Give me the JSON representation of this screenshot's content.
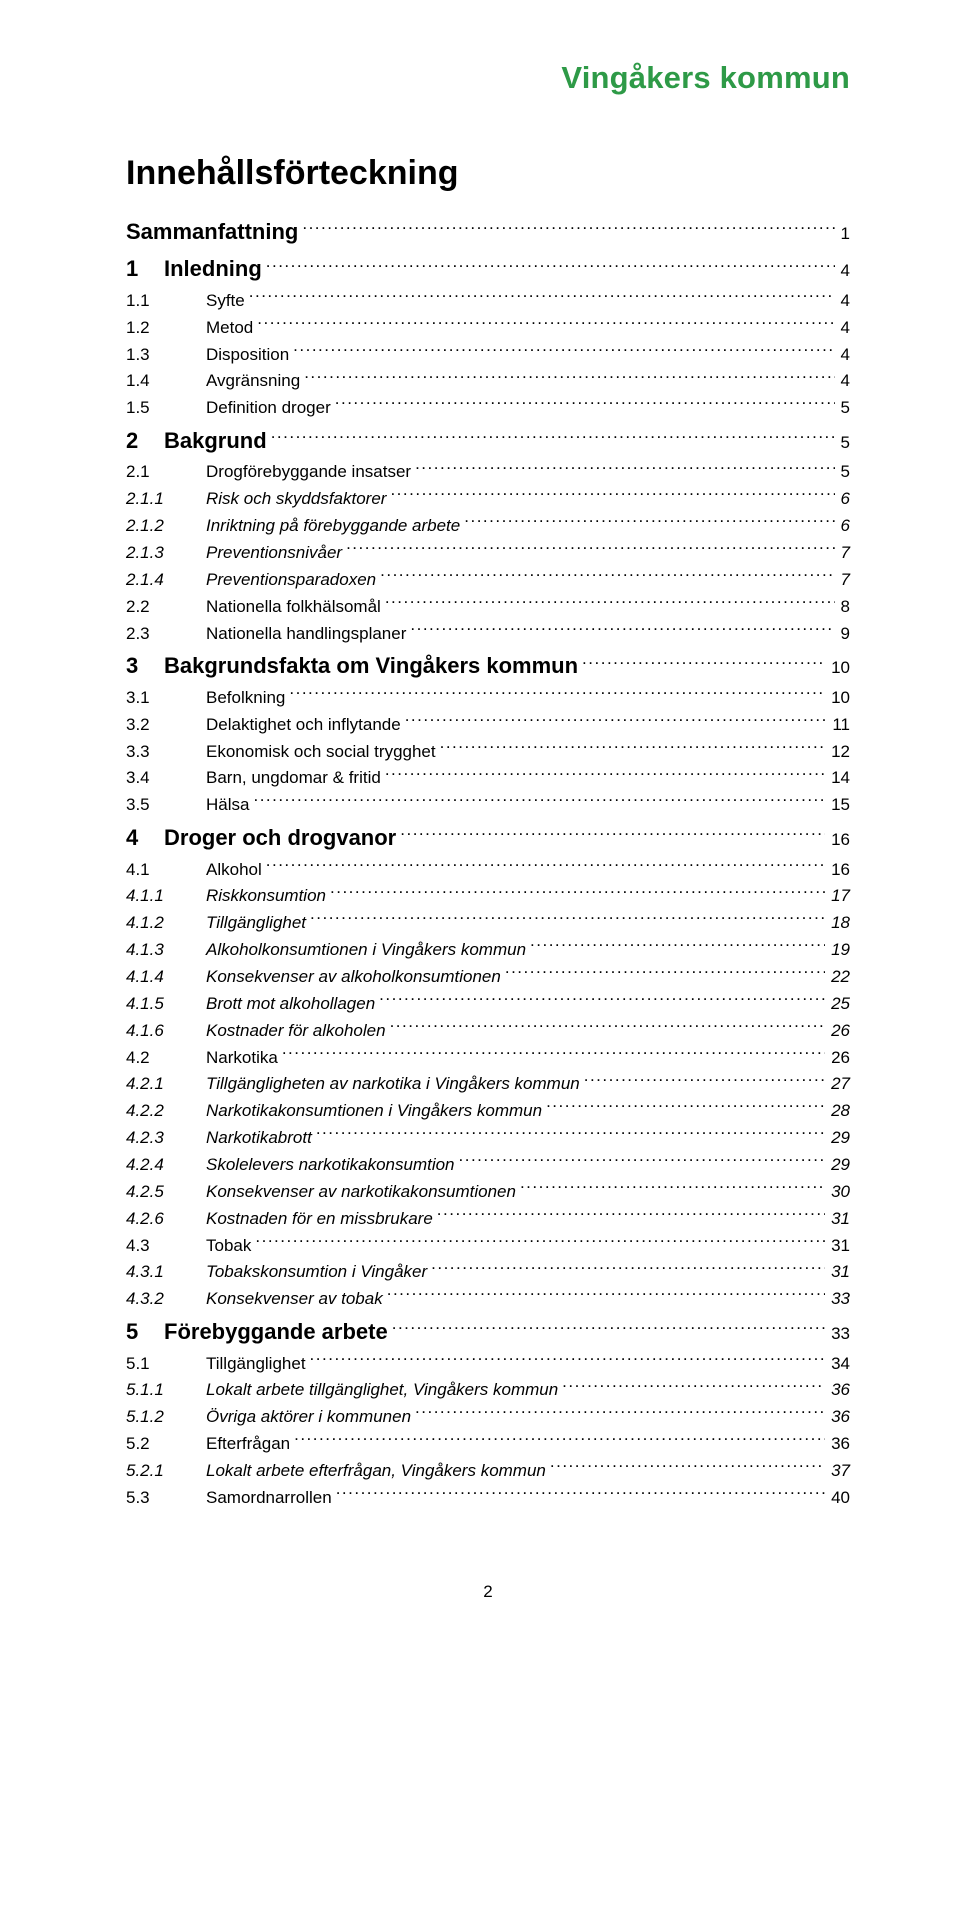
{
  "brand": "Vingåkers kommun",
  "title": "Innehållsförteckning",
  "page_number": "2",
  "colors": {
    "brand_green": "#2e9a47",
    "text": "#000000",
    "background": "#ffffff"
  },
  "typography": {
    "brand_fontsize": 31,
    "title_fontsize": 34,
    "lvl0_fontsize": 22,
    "body_fontsize": 17
  },
  "toc": [
    {
      "level": 0,
      "num": "",
      "label": "Sammanfattning",
      "page": "1",
      "nonum": true
    },
    {
      "level": 0,
      "num": "1",
      "label": "Inledning",
      "page": "4"
    },
    {
      "level": 1,
      "num": "1.1",
      "label": "Syfte",
      "page": "4"
    },
    {
      "level": 1,
      "num": "1.2",
      "label": "Metod",
      "page": "4"
    },
    {
      "level": 1,
      "num": "1.3",
      "label": "Disposition",
      "page": "4"
    },
    {
      "level": 1,
      "num": "1.4",
      "label": "Avgränsning",
      "page": "4"
    },
    {
      "level": 1,
      "num": "1.5",
      "label": "Definition droger",
      "page": "5"
    },
    {
      "level": 0,
      "num": "2",
      "label": "Bakgrund",
      "page": "5"
    },
    {
      "level": 1,
      "num": "2.1",
      "label": "Drogförebyggande insatser",
      "page": "5"
    },
    {
      "level": 2,
      "num": "2.1.1",
      "label": "Risk och skyddsfaktorer",
      "page": "6"
    },
    {
      "level": 2,
      "num": "2.1.2",
      "label": "Inriktning på förebyggande arbete",
      "page": "6"
    },
    {
      "level": 2,
      "num": "2.1.3",
      "label": "Preventionsnivåer",
      "page": "7"
    },
    {
      "level": 2,
      "num": "2.1.4",
      "label": "Preventionsparadoxen",
      "page": "7"
    },
    {
      "level": 1,
      "num": "2.2",
      "label": "Nationella folkhälsomål",
      "page": "8"
    },
    {
      "level": 1,
      "num": "2.3",
      "label": "Nationella handlingsplaner",
      "page": "9"
    },
    {
      "level": 0,
      "num": "3",
      "label": "Bakgrundsfakta om Vingåkers kommun",
      "page": "10"
    },
    {
      "level": 1,
      "num": "3.1",
      "label": "Befolkning",
      "page": "10"
    },
    {
      "level": 1,
      "num": "3.2",
      "label": "Delaktighet och inflytande",
      "page": "11"
    },
    {
      "level": 1,
      "num": "3.3",
      "label": "Ekonomisk och social trygghet",
      "page": "12"
    },
    {
      "level": 1,
      "num": "3.4",
      "label": "Barn, ungdomar & fritid",
      "page": "14"
    },
    {
      "level": 1,
      "num": "3.5",
      "label": "Hälsa",
      "page": "15"
    },
    {
      "level": 0,
      "num": "4",
      "label": "Droger och drogvanor",
      "page": "16"
    },
    {
      "level": 1,
      "num": "4.1",
      "label": "Alkohol",
      "page": "16"
    },
    {
      "level": 2,
      "num": "4.1.1",
      "label": "Riskkonsumtion",
      "page": "17"
    },
    {
      "level": 2,
      "num": "4.1.2",
      "label": "Tillgänglighet",
      "page": "18"
    },
    {
      "level": 2,
      "num": "4.1.3",
      "label": "Alkoholkonsumtionen i Vingåkers kommun",
      "page": "19"
    },
    {
      "level": 2,
      "num": "4.1.4",
      "label": "Konsekvenser av alkoholkonsumtionen",
      "page": "22"
    },
    {
      "level": 2,
      "num": "4.1.5",
      "label": "Brott mot alkohollagen",
      "page": "25"
    },
    {
      "level": 2,
      "num": "4.1.6",
      "label": "Kostnader för alkoholen",
      "page": "26"
    },
    {
      "level": 1,
      "num": "4.2",
      "label": "Narkotika",
      "page": "26"
    },
    {
      "level": 2,
      "num": "4.2.1",
      "label": "Tillgängligheten av narkotika i Vingåkers kommun",
      "page": "27"
    },
    {
      "level": 2,
      "num": "4.2.2",
      "label": "Narkotikakonsumtionen i Vingåkers kommun",
      "page": "28"
    },
    {
      "level": 2,
      "num": "4.2.3",
      "label": "Narkotikabrott",
      "page": "29"
    },
    {
      "level": 2,
      "num": "4.2.4",
      "label": "Skolelevers narkotikakonsumtion",
      "page": "29"
    },
    {
      "level": 2,
      "num": "4.2.5",
      "label": "Konsekvenser av narkotikakonsumtionen",
      "page": "30"
    },
    {
      "level": 2,
      "num": "4.2.6",
      "label": "Kostnaden för en missbrukare",
      "page": "31"
    },
    {
      "level": 1,
      "num": "4.3",
      "label": "Tobak",
      "page": "31"
    },
    {
      "level": 2,
      "num": "4.3.1",
      "label": "Tobakskonsumtion i Vingåker",
      "page": "31"
    },
    {
      "level": 2,
      "num": "4.3.2",
      "label": "Konsekvenser av tobak",
      "page": "33"
    },
    {
      "level": 0,
      "num": "5",
      "label": "Förebyggande arbete",
      "page": "33"
    },
    {
      "level": 1,
      "num": "5.1",
      "label": "Tillgänglighet",
      "page": "34"
    },
    {
      "level": 2,
      "num": "5.1.1",
      "label": "Lokalt arbete tillgänglighet, Vingåkers kommun",
      "page": "36"
    },
    {
      "level": 2,
      "num": "5.1.2",
      "label": "Övriga aktörer i kommunen",
      "page": "36"
    },
    {
      "level": 1,
      "num": "5.2",
      "label": "Efterfrågan",
      "page": "36"
    },
    {
      "level": 2,
      "num": "5.2.1",
      "label": "Lokalt arbete efterfrågan, Vingåkers kommun",
      "page": "37"
    },
    {
      "level": 1,
      "num": "5.3",
      "label": "Samordnarrollen",
      "page": "40"
    }
  ]
}
